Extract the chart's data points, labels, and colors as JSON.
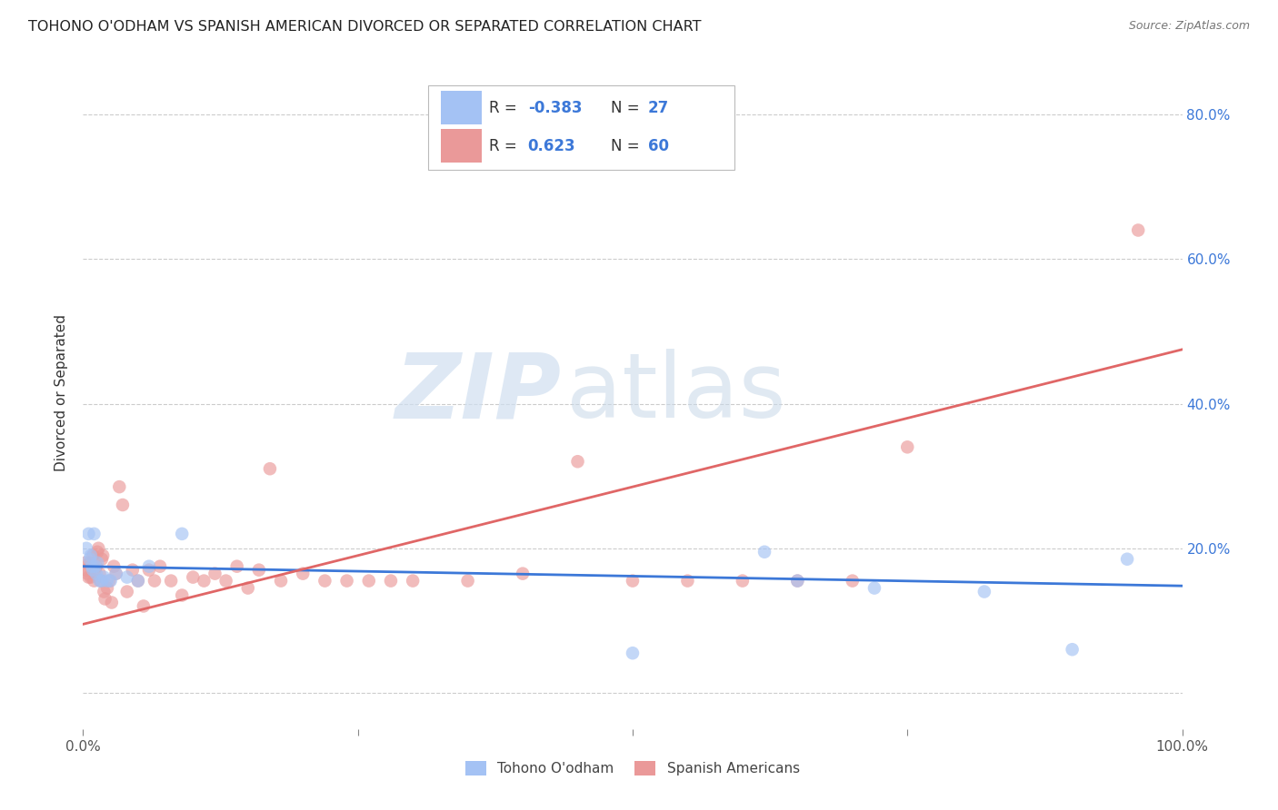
{
  "title": "TOHONO O'ODHAM VS SPANISH AMERICAN DIVORCED OR SEPARATED CORRELATION CHART",
  "source": "Source: ZipAtlas.com",
  "ylabel": "Divorced or Separated",
  "watermark_zip": "ZIP",
  "watermark_atlas": "atlas",
  "xlim": [
    0,
    1.0
  ],
  "ylim": [
    -0.05,
    0.88
  ],
  "legend_labels": [
    "Tohono O'odham",
    "Spanish Americans"
  ],
  "blue_color": "#a4c2f4",
  "pink_color": "#ea9999",
  "blue_line_color": "#3c78d8",
  "pink_line_color": "#e06666",
  "R_blue": "-0.383",
  "N_blue": "27",
  "R_pink": "0.623",
  "N_pink": "60",
  "blue_line_x": [
    0.0,
    1.0
  ],
  "blue_line_y": [
    0.175,
    0.148
  ],
  "pink_line_x": [
    0.0,
    1.0
  ],
  "pink_line_y": [
    0.095,
    0.475
  ],
  "blue_x": [
    0.003,
    0.005,
    0.006,
    0.007,
    0.008,
    0.009,
    0.01,
    0.011,
    0.012,
    0.013,
    0.015,
    0.017,
    0.019,
    0.022,
    0.025,
    0.03,
    0.04,
    0.05,
    0.06,
    0.09,
    0.5,
    0.62,
    0.65,
    0.72,
    0.82,
    0.9,
    0.95
  ],
  "blue_y": [
    0.2,
    0.22,
    0.185,
    0.19,
    0.175,
    0.17,
    0.22,
    0.175,
    0.165,
    0.18,
    0.155,
    0.155,
    0.16,
    0.155,
    0.155,
    0.165,
    0.16,
    0.155,
    0.175,
    0.22,
    0.055,
    0.195,
    0.155,
    0.145,
    0.14,
    0.06,
    0.185
  ],
  "pink_x": [
    0.002,
    0.003,
    0.004,
    0.005,
    0.006,
    0.007,
    0.008,
    0.009,
    0.01,
    0.011,
    0.012,
    0.013,
    0.014,
    0.015,
    0.016,
    0.017,
    0.018,
    0.019,
    0.02,
    0.022,
    0.024,
    0.026,
    0.028,
    0.03,
    0.033,
    0.036,
    0.04,
    0.045,
    0.05,
    0.055,
    0.06,
    0.065,
    0.07,
    0.08,
    0.09,
    0.1,
    0.11,
    0.12,
    0.13,
    0.14,
    0.15,
    0.16,
    0.17,
    0.18,
    0.2,
    0.22,
    0.24,
    0.26,
    0.28,
    0.3,
    0.35,
    0.4,
    0.45,
    0.5,
    0.55,
    0.6,
    0.65,
    0.7,
    0.75,
    0.96
  ],
  "pink_y": [
    0.18,
    0.17,
    0.165,
    0.16,
    0.18,
    0.16,
    0.175,
    0.19,
    0.155,
    0.17,
    0.175,
    0.195,
    0.2,
    0.165,
    0.155,
    0.185,
    0.19,
    0.14,
    0.13,
    0.145,
    0.155,
    0.125,
    0.175,
    0.165,
    0.285,
    0.26,
    0.14,
    0.17,
    0.155,
    0.12,
    0.17,
    0.155,
    0.175,
    0.155,
    0.135,
    0.16,
    0.155,
    0.165,
    0.155,
    0.175,
    0.145,
    0.17,
    0.31,
    0.155,
    0.165,
    0.155,
    0.155,
    0.155,
    0.155,
    0.155,
    0.155,
    0.165,
    0.32,
    0.155,
    0.155,
    0.155,
    0.155,
    0.155,
    0.34,
    0.64
  ]
}
